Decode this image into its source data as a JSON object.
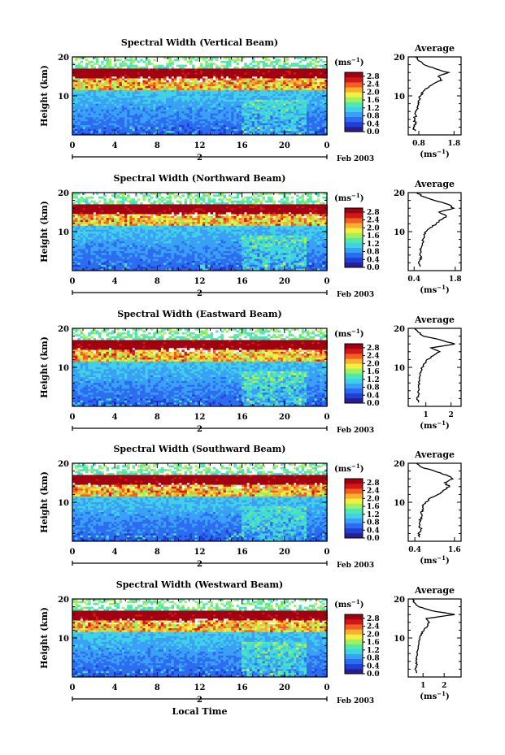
{
  "figure": {
    "date_label": "Feb 2003",
    "day_label": "2",
    "xlabel": "Local Time",
    "ylabel": "Height (km)",
    "x_ticks": [
      "0",
      "4",
      "8",
      "12",
      "16",
      "20",
      "0"
    ],
    "y_ticks": [
      "10",
      "20"
    ],
    "colorbar_unit": "(ms",
    "colorbar_unit_exp": "−1",
    "colorbar_unit_close": ")",
    "avg_title": "Average",
    "avg_xlabel": "(ms",
    "avg_xlabel_exp": "−1",
    "avg_xlabel_close": ")"
  },
  "colors": {
    "colormap": [
      "#2a1f8a",
      "#1f3fd6",
      "#2c6cf0",
      "#3aa0f5",
      "#40d0e8",
      "#50e8b0",
      "#a0f060",
      "#f0f040",
      "#f8b030",
      "#f06020",
      "#d01818",
      "#a00010"
    ],
    "missing": "#ffffff",
    "axis": "#000000"
  },
  "chart_data": [
    {
      "type": "heatmap",
      "title": "Spectral Width (Vertical Beam)",
      "x_range": [
        0,
        24
      ],
      "y_range": [
        0,
        20
      ],
      "colorbar_ticks": [
        "0.0",
        "0.4",
        "0.8",
        "1.2",
        "1.6",
        "2.0",
        "2.4",
        "2.8"
      ],
      "colorbar_range": [
        0.0,
        3.0
      ],
      "profile": {
        "title": "Average",
        "x_ticks": [
          "0.8",
          "1.8"
        ],
        "xlim": [
          0.5,
          2.0
        ],
        "heights": [
          1,
          2,
          3,
          4,
          5,
          6,
          7,
          8,
          9,
          10,
          11,
          12,
          13,
          14,
          15,
          16,
          17,
          18,
          19,
          20
        ],
        "values": [
          0.7,
          0.65,
          0.7,
          0.68,
          0.72,
          0.7,
          0.75,
          0.78,
          0.82,
          0.85,
          0.92,
          1.05,
          1.2,
          1.45,
          1.35,
          1.65,
          1.25,
          0.95,
          0.8,
          0.7
        ]
      }
    },
    {
      "type": "heatmap",
      "title": "Spectral Width (Northward Beam)",
      "x_range": [
        0,
        24
      ],
      "y_range": [
        0,
        20
      ],
      "colorbar_ticks": [
        "0.0",
        "0.4",
        "0.8",
        "1.2",
        "1.6",
        "2.0",
        "2.4",
        "2.8"
      ],
      "colorbar_range": [
        0.0,
        3.0
      ],
      "profile": {
        "title": "Average",
        "x_ticks": [
          "0.4",
          "1.8"
        ],
        "xlim": [
          0.2,
          2.0
        ],
        "heights": [
          1,
          2,
          3,
          4,
          5,
          6,
          7,
          8,
          9,
          10,
          11,
          12,
          13,
          14,
          15,
          16,
          17,
          18,
          19,
          20
        ],
        "values": [
          0.6,
          0.55,
          0.65,
          0.6,
          0.62,
          0.65,
          0.68,
          0.7,
          0.75,
          0.8,
          0.95,
          1.15,
          1.3,
          1.5,
          1.25,
          1.75,
          1.55,
          1.1,
          0.7,
          0.5
        ]
      }
    },
    {
      "type": "heatmap",
      "title": "Spectral Width (Eastward Beam)",
      "x_range": [
        0,
        24
      ],
      "y_range": [
        0,
        20
      ],
      "colorbar_ticks": [
        "0.0",
        "0.4",
        "0.8",
        "1.2",
        "1.6",
        "2.0",
        "2.4",
        "2.8"
      ],
      "colorbar_range": [
        0.0,
        3.0
      ],
      "profile": {
        "title": "Average",
        "x_ticks": [
          "1",
          "2"
        ],
        "xlim": [
          0.3,
          2.4
        ],
        "heights": [
          1,
          2,
          3,
          4,
          5,
          6,
          7,
          8,
          9,
          10,
          11,
          12,
          13,
          14,
          15,
          16,
          17,
          18,
          19,
          20
        ],
        "values": [
          0.7,
          0.65,
          0.72,
          0.7,
          0.7,
          0.72,
          0.75,
          0.78,
          0.8,
          0.85,
          0.95,
          1.05,
          1.3,
          1.55,
          1.2,
          2.15,
          1.6,
          0.9,
          0.7,
          0.55
        ]
      }
    },
    {
      "type": "heatmap",
      "title": "Spectral Width (Southward Beam)",
      "x_range": [
        0,
        24
      ],
      "y_range": [
        0,
        20
      ],
      "colorbar_ticks": [
        "0.0",
        "0.4",
        "0.8",
        "1.2",
        "1.6",
        "2.0",
        "2.4",
        "2.8"
      ],
      "colorbar_range": [
        0.0,
        3.0
      ],
      "profile": {
        "title": "Average",
        "x_ticks": [
          "0.4",
          "1.6"
        ],
        "xlim": [
          0.2,
          1.8
        ],
        "heights": [
          1,
          2,
          3,
          4,
          5,
          6,
          7,
          8,
          9,
          10,
          11,
          12,
          13,
          14,
          15,
          16,
          17,
          18,
          19,
          20
        ],
        "values": [
          0.55,
          0.5,
          0.58,
          0.55,
          0.55,
          0.58,
          0.6,
          0.62,
          0.65,
          0.72,
          0.85,
          1.1,
          1.25,
          1.45,
          1.3,
          1.55,
          1.35,
          1.0,
          0.6,
          0.45
        ]
      }
    },
    {
      "type": "heatmap",
      "title": "Spectral Width (Westward Beam)",
      "x_range": [
        0,
        24
      ],
      "y_range": [
        0,
        20
      ],
      "colorbar_ticks": [
        "0.0",
        "0.4",
        "0.8",
        "1.2",
        "1.6",
        "2.0",
        "2.4",
        "2.8"
      ],
      "colorbar_range": [
        0.0,
        3.0
      ],
      "profile": {
        "title": "Average",
        "x_ticks": [
          "1",
          "2"
        ],
        "xlim": [
          0.3,
          2.8
        ],
        "heights": [
          1,
          2,
          3,
          4,
          5,
          6,
          7,
          8,
          9,
          10,
          11,
          12,
          13,
          14,
          15,
          16,
          17,
          18,
          19,
          20
        ],
        "values": [
          0.7,
          0.62,
          0.7,
          0.68,
          0.7,
          0.72,
          0.75,
          0.78,
          0.8,
          0.85,
          0.9,
          1.05,
          1.2,
          1.3,
          1.15,
          2.5,
          1.4,
          0.8,
          0.6,
          0.5
        ]
      }
    }
  ]
}
